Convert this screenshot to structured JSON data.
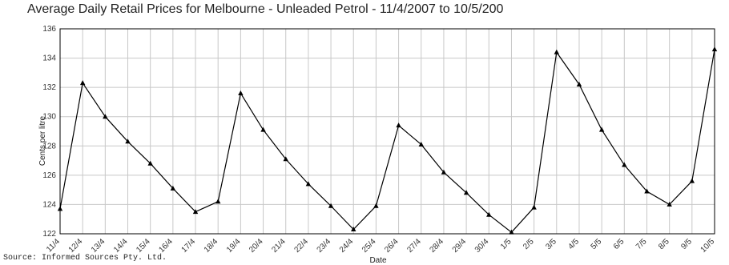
{
  "chart_data": {
    "type": "line",
    "title": "Average Daily Retail Prices for Melbourne - Unleaded Petrol - 11/4/2007 to 10/5/200",
    "xlabel": "Date",
    "ylabel": "Cents per litre",
    "ylim": [
      122,
      136
    ],
    "yticks": [
      122,
      124,
      126,
      128,
      130,
      132,
      134,
      136
    ],
    "grid": true,
    "categories": [
      "11/4",
      "12/4",
      "13/4",
      "14/4",
      "15/4",
      "16/4",
      "17/4",
      "18/4",
      "19/4",
      "20/4",
      "21/4",
      "22/4",
      "23/4",
      "24/4",
      "25/4",
      "26/4",
      "27/4",
      "28/4",
      "29/4",
      "30/4",
      "1/5",
      "2/5",
      "3/5",
      "4/5",
      "5/5",
      "6/5",
      "7/5",
      "8/5",
      "9/5",
      "10/5"
    ],
    "series": [
      {
        "values": [
          123.7,
          132.3,
          130.0,
          128.3,
          126.8,
          125.1,
          123.5,
          124.2,
          131.6,
          129.1,
          127.1,
          125.4,
          123.9,
          122.3,
          123.9,
          129.4,
          128.1,
          126.2,
          124.8,
          123.3,
          122.1,
          123.8,
          134.4,
          132.2,
          129.1,
          126.7,
          124.9,
          124.0,
          125.6,
          134.6
        ]
      }
    ],
    "series_color": "#000000",
    "marker": "triangle"
  },
  "source": "Source: Informed Sources Pty. Ltd."
}
